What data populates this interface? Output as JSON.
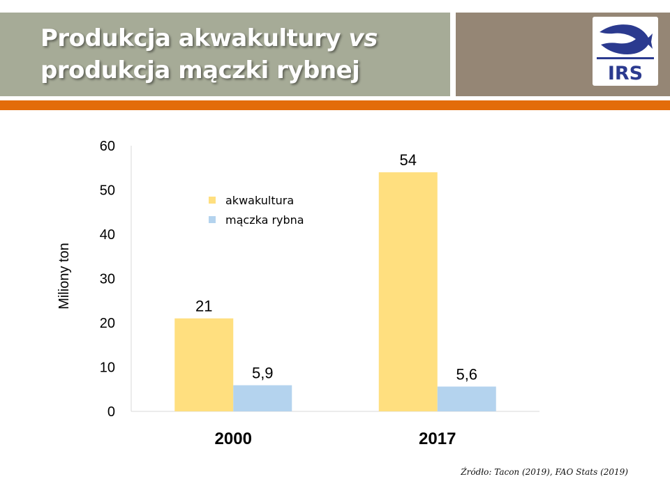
{
  "slide": {
    "title_part1": "Produkcja akwakultury ",
    "title_vs": "vs",
    "title_part2": "produkcja mączki rybnej",
    "logo_text": "IRS",
    "source": "Źródło: Tacon (2019), FAO Stats (2019)"
  },
  "colors": {
    "header_green": "#a6ab97",
    "header_brown": "#958675",
    "accent_orange": "#e36c0a",
    "logo_blue": "#2b3a8f"
  },
  "chart_data": {
    "type": "bar",
    "categories": [
      "2000",
      "2017"
    ],
    "series": [
      {
        "name": "akwakultura",
        "values": [
          21,
          54
        ],
        "labels": [
          "21",
          "54"
        ],
        "color": "#ffdf7f"
      },
      {
        "name": "mączka rybna",
        "values": [
          5.9,
          5.6
        ],
        "labels": [
          "5,9",
          "5,6"
        ],
        "color": "#b4d3ee"
      }
    ],
    "title": "",
    "xlabel": "",
    "ylabel": "Miliony ton",
    "ylim": [
      0,
      60
    ],
    "yticks": [
      0,
      10,
      20,
      30,
      40,
      50,
      60
    ],
    "grid": false,
    "legend_position": "top-left inside plot"
  }
}
